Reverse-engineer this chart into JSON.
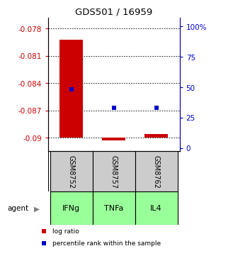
{
  "title": "GDS501 / 16959",
  "samples": [
    "GSM8752",
    "GSM8757",
    "GSM8762"
  ],
  "agents": [
    "IFNg",
    "TNFa",
    "IL4"
  ],
  "log_ratios": [
    -0.0792,
    -0.0903,
    -0.0896
  ],
  "percentile_ranks": [
    48,
    33,
    33
  ],
  "y_bottom": -0.09,
  "ylim_left": [
    -0.0915,
    -0.0768
  ],
  "yticks_left": [
    -0.09,
    -0.087,
    -0.084,
    -0.081,
    -0.078
  ],
  "ytick_labels_left": [
    "-0.09",
    "-0.087",
    "-0.084",
    "-0.081",
    "-0.078"
  ],
  "yticks_right": [
    0,
    25,
    50,
    75,
    100
  ],
  "ytick_labels_right": [
    "0",
    "25",
    "50",
    "75",
    "100%"
  ],
  "ylim_right": [
    -2.5,
    107
  ],
  "bar_color": "#cc0000",
  "dot_color": "#0000cc",
  "agent_color": "#99ff99",
  "sample_bg": "#cccccc",
  "left_axis_color": "#cc0000",
  "right_axis_color": "#0000cc",
  "bar_width": 0.55,
  "x_positions": [
    0,
    1,
    2
  ],
  "xlim": [
    -0.55,
    2.55
  ]
}
